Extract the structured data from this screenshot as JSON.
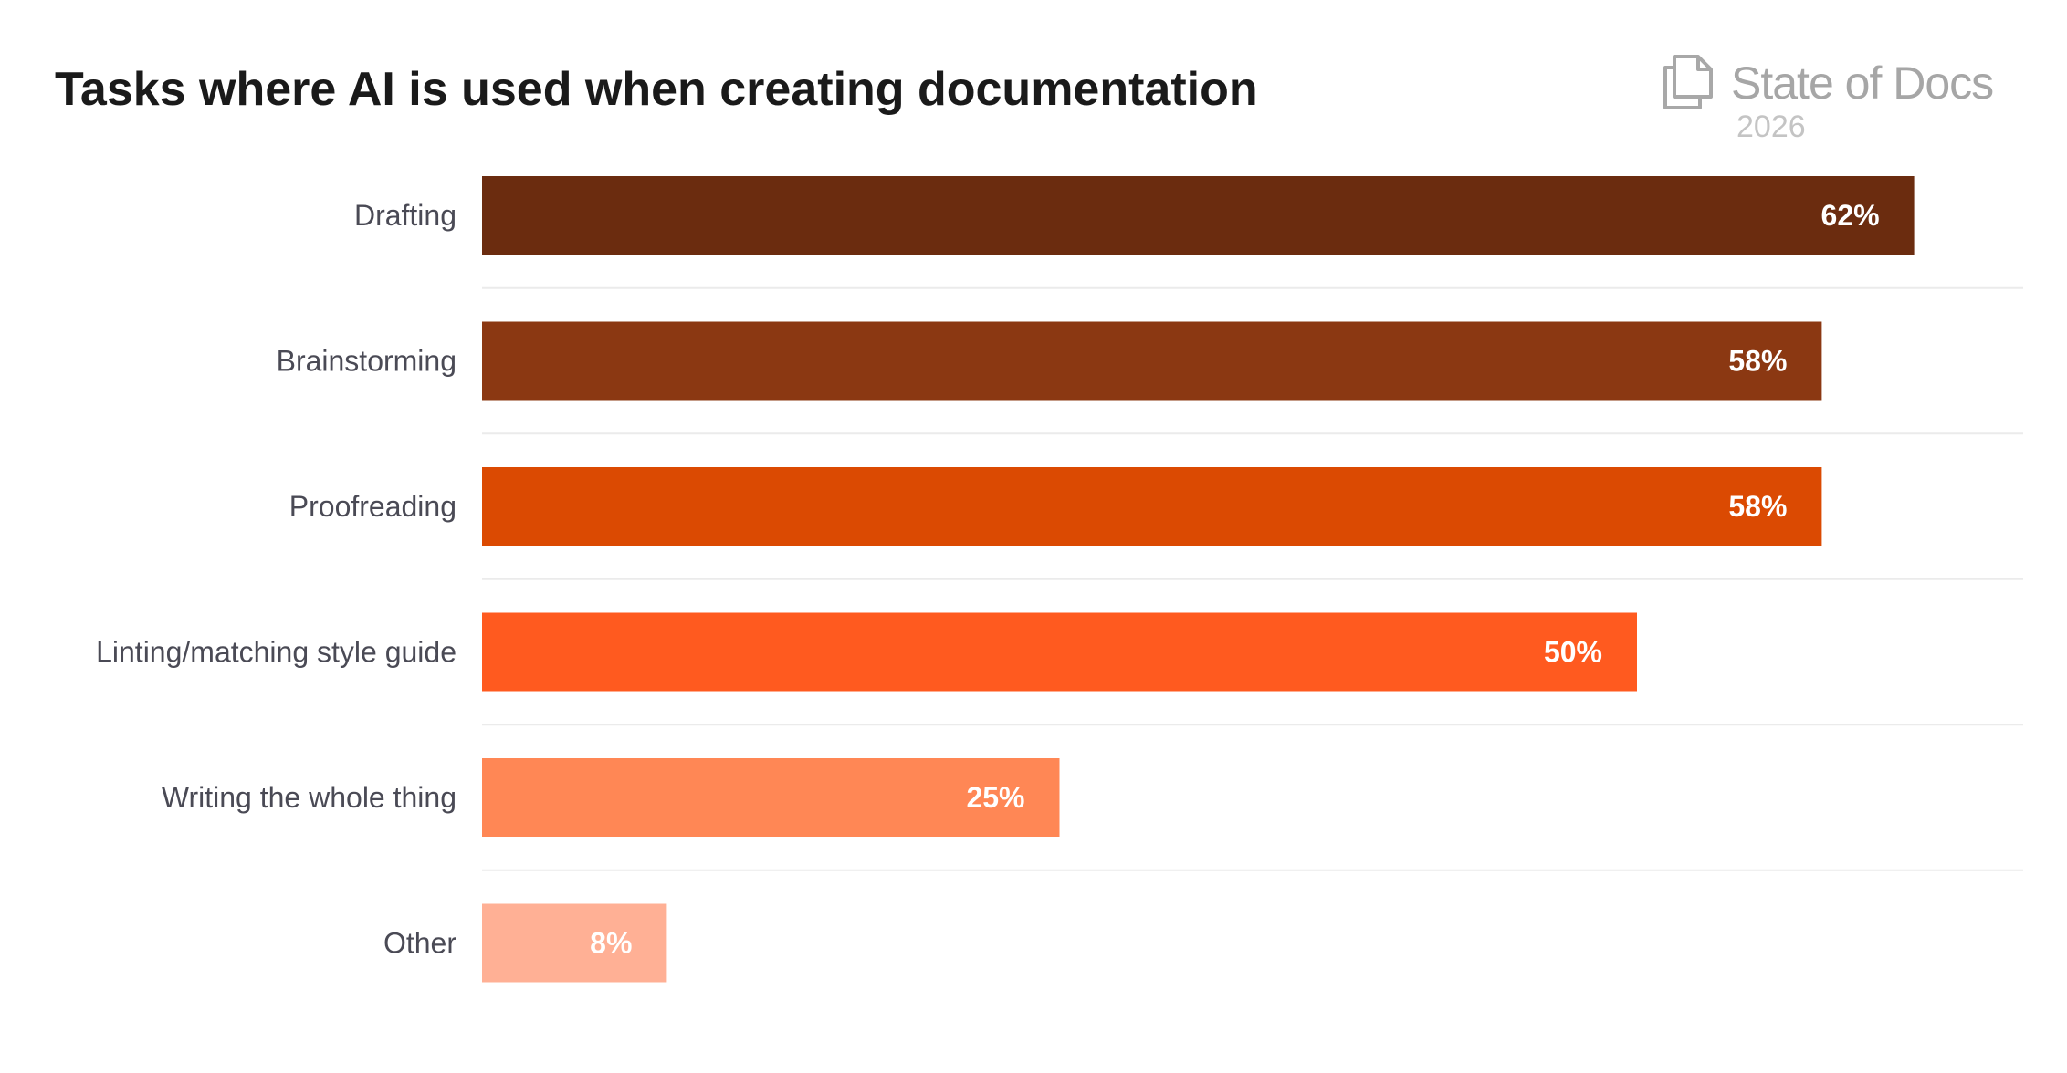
{
  "header": {
    "title": "Tasks where AI is used when creating documentation"
  },
  "brand": {
    "name": "State of Docs",
    "year": "2026",
    "icon": "documents-icon"
  },
  "chart_data": {
    "type": "bar",
    "orientation": "horizontal",
    "title": "Tasks where AI is used when creating documentation",
    "categories": [
      "Drafting",
      "Brainstorming",
      "Proofreading",
      "Linting/matching style guide",
      "Writing the whole thing",
      "Other"
    ],
    "values": [
      62,
      58,
      58,
      50,
      25,
      8
    ],
    "value_labels": [
      "62%",
      "58%",
      "58%",
      "50%",
      "25%",
      "8%"
    ],
    "bar_colors": [
      "#6b2c0f",
      "#8b3812",
      "#db4a02",
      "#ff5a1f",
      "#ff8755",
      "#ffb095"
    ],
    "label_color_inside": "#ffffff",
    "label_color_outside": "#ff5a1f",
    "xlabel": "",
    "ylabel": "",
    "xlim": [
      0,
      67
    ],
    "grid": false,
    "legend": "none"
  }
}
